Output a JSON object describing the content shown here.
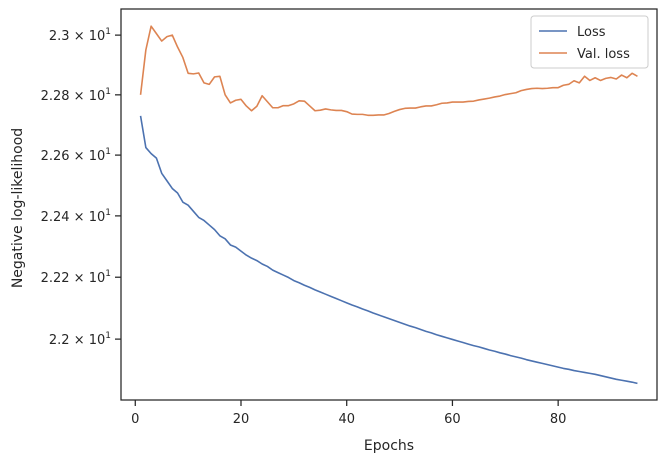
{
  "chart_data": {
    "type": "line",
    "title": "",
    "xlabel": "Epochs",
    "ylabel": "Negative log-likelihood",
    "xlim": [
      -2.7,
      98.7
    ],
    "ylim": [
      21.805,
      23.088
    ],
    "yscale": "log",
    "xticks": [
      0,
      20,
      40,
      60,
      80
    ],
    "xtick_labels": [
      "0",
      "20",
      "40",
      "60",
      "80"
    ],
    "yticks": [
      22.0,
      22.2,
      22.4,
      22.6,
      22.8,
      23.0
    ],
    "ytick_labels": [
      {
        "mantissa": "2.2",
        "times": "×",
        "base": "10",
        "exp": "1"
      },
      {
        "mantissa": "2.22",
        "times": "×",
        "base": "10",
        "exp": "1"
      },
      {
        "mantissa": "2.24",
        "times": "×",
        "base": "10",
        "exp": "1"
      },
      {
        "mantissa": "2.26",
        "times": "×",
        "base": "10",
        "exp": "1"
      },
      {
        "mantissa": "2.28",
        "times": "×",
        "base": "10",
        "exp": "1"
      },
      {
        "mantissa": "2.3",
        "times": "×",
        "base": "10",
        "exp": "1"
      }
    ],
    "grid": false,
    "legend_position": "top-right",
    "series": [
      {
        "name": "Loss",
        "color": "#4c72b0",
        "x": [
          1,
          2,
          3,
          4,
          5,
          6,
          7,
          8,
          9,
          10,
          11,
          12,
          13,
          14,
          15,
          16,
          17,
          18,
          19,
          20,
          21,
          22,
          23,
          24,
          25,
          26,
          27,
          28,
          29,
          30,
          31,
          32,
          33,
          34,
          35,
          36,
          37,
          38,
          39,
          40,
          41,
          42,
          43,
          44,
          45,
          46,
          47,
          48,
          49,
          50,
          51,
          52,
          53,
          54,
          55,
          56,
          57,
          58,
          59,
          60,
          61,
          62,
          63,
          64,
          65,
          66,
          67,
          68,
          69,
          70,
          71,
          72,
          73,
          74,
          75,
          76,
          77,
          78,
          79,
          80,
          81,
          82,
          83,
          84,
          85,
          86,
          87,
          88,
          89,
          90,
          91,
          92,
          93,
          94,
          95
        ],
        "y": [
          22.73,
          22.625,
          22.605,
          22.59,
          22.54,
          22.515,
          22.49,
          22.475,
          22.445,
          22.435,
          22.415,
          22.395,
          22.385,
          22.37,
          22.355,
          22.335,
          22.325,
          22.305,
          22.298,
          22.285,
          22.272,
          22.262,
          22.254,
          22.243,
          22.235,
          22.223,
          22.215,
          22.207,
          22.199,
          22.189,
          22.182,
          22.174,
          22.167,
          22.159,
          22.152,
          22.145,
          22.138,
          22.131,
          22.124,
          22.117,
          22.11,
          22.104,
          22.097,
          22.091,
          22.084,
          22.078,
          22.072,
          22.066,
          22.06,
          22.054,
          22.048,
          22.042,
          22.037,
          22.031,
          22.025,
          22.02,
          22.014,
          22.009,
          22.004,
          21.999,
          21.994,
          21.989,
          21.984,
          21.979,
          21.975,
          21.97,
          21.965,
          21.961,
          21.956,
          21.952,
          21.947,
          21.943,
          21.939,
          21.934,
          21.93,
          21.926,
          21.922,
          21.918,
          21.914,
          21.91,
          21.906,
          21.903,
          21.899,
          21.896,
          21.893,
          21.89,
          21.887,
          21.883,
          21.879,
          21.875,
          21.871,
          21.868,
          21.865,
          21.862,
          21.858
        ]
      },
      {
        "name": "Val. loss",
        "color": "#dd8452",
        "x": [
          1,
          2,
          3,
          4,
          5,
          6,
          7,
          8,
          9,
          10,
          11,
          12,
          13,
          14,
          15,
          16,
          17,
          18,
          19,
          20,
          21,
          22,
          23,
          24,
          25,
          26,
          27,
          28,
          29,
          30,
          31,
          32,
          33,
          34,
          35,
          36,
          37,
          38,
          39,
          40,
          41,
          42,
          43,
          44,
          45,
          46,
          47,
          48,
          49,
          50,
          51,
          52,
          53,
          54,
          55,
          56,
          57,
          58,
          59,
          60,
          61,
          62,
          63,
          64,
          65,
          66,
          67,
          68,
          69,
          70,
          71,
          72,
          73,
          74,
          75,
          76,
          77,
          78,
          79,
          80,
          81,
          82,
          83,
          84,
          85,
          86,
          87,
          88,
          89,
          90,
          91,
          92,
          93,
          94,
          95
        ],
        "y": [
          22.8,
          22.95,
          23.03,
          23.005,
          22.98,
          22.995,
          23.0,
          22.96,
          22.925,
          22.872,
          22.87,
          22.873,
          22.84,
          22.835,
          22.86,
          22.862,
          22.8,
          22.773,
          22.782,
          22.785,
          22.763,
          22.747,
          22.762,
          22.797,
          22.777,
          22.757,
          22.757,
          22.764,
          22.764,
          22.77,
          22.78,
          22.779,
          22.763,
          22.747,
          22.749,
          22.753,
          22.75,
          22.748,
          22.748,
          22.744,
          22.736,
          22.735,
          22.735,
          22.732,
          22.732,
          22.733,
          22.733,
          22.738,
          22.745,
          22.751,
          22.755,
          22.756,
          22.756,
          22.76,
          22.763,
          22.763,
          22.767,
          22.772,
          22.773,
          22.776,
          22.776,
          22.776,
          22.778,
          22.779,
          22.783,
          22.786,
          22.789,
          22.793,
          22.796,
          22.801,
          22.804,
          22.807,
          22.814,
          22.818,
          22.821,
          22.822,
          22.821,
          22.822,
          22.824,
          22.824,
          22.832,
          22.835,
          22.847,
          22.84,
          22.862,
          22.848,
          22.857,
          22.848,
          22.855,
          22.858,
          22.853,
          22.866,
          22.857,
          22.872,
          22.862
        ]
      }
    ]
  }
}
